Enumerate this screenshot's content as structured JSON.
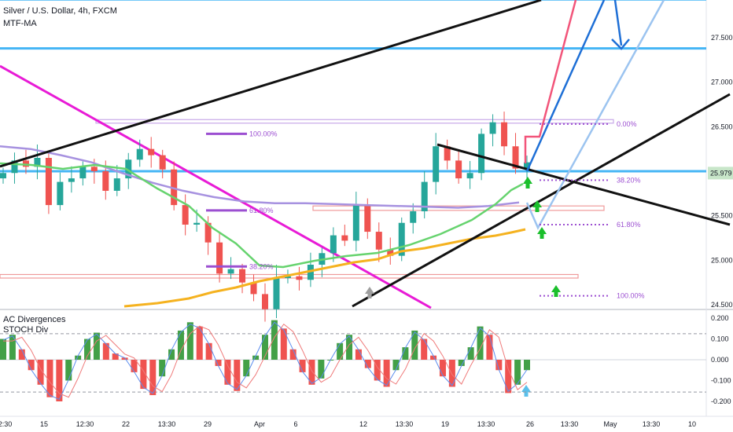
{
  "header": {
    "symbol_line": "Silver / U.S. Dollar, 4h, FXCM",
    "indicator_label": "MTF-MA",
    "osc_label_1": "AC Divergences",
    "osc_label_2": "STOCH Div"
  },
  "price_badge": {
    "value": "25.979",
    "color": "#c8e6c9"
  },
  "colors": {
    "bull": "#26a69a",
    "bear": "#ef5350",
    "ma_green": "#66d36e",
    "ma_purple": "#a792e0",
    "ma_orange": "#f5b21f",
    "line_blue": "#1e6fd6",
    "line_lightblue": "#9cc4f0",
    "line_cyan": "#45b5f5",
    "line_magenta": "#e81bd6",
    "line_red": "#f2557a",
    "fib": "#9c4fd1",
    "arrow_green": "#1bbf2c"
  },
  "chart_data": [
    {
      "type": "candlestick",
      "title": "Silver / U.S. Dollar, 4h, FXCM",
      "ylim": [
        24.4,
        27.95
      ],
      "y_ticks": [
        "27.500",
        "27.000",
        "26.500",
        "26.000",
        "25.500",
        "25.000",
        "24.500"
      ],
      "x_ticks": [
        "12:30",
        "15",
        "12:30",
        "22",
        "13:30",
        "29",
        "Apr",
        "6",
        "12",
        "13:30",
        "19",
        "13:30",
        "26",
        "13:30",
        "May",
        "13:30",
        "10"
      ],
      "last_price": 25.979,
      "closes": [
        25.98,
        26.12,
        26.05,
        26.15,
        25.62,
        25.88,
        25.92,
        26.05,
        26.0,
        25.78,
        25.92,
        26.13,
        26.25,
        26.18,
        26.02,
        25.62,
        25.4,
        25.42,
        25.2,
        24.85,
        24.9,
        24.75,
        24.62,
        24.45,
        24.8,
        24.82,
        24.78,
        24.95,
        25.08,
        25.28,
        25.22,
        25.62,
        25.32,
        25.12,
        25.05,
        25.42,
        25.55,
        25.88,
        26.28,
        26.12,
        25.92,
        25.98,
        26.42,
        26.55,
        26.28,
        26.03,
        26.1
      ],
      "fib_left": [
        {
          "label": "100.00%",
          "value": 26.42
        },
        {
          "label": "61.80%",
          "value": 25.56
        },
        {
          "label": "38.20%",
          "value": 24.93
        }
      ],
      "fib_right": [
        {
          "label": "0.00%",
          "value": 26.53
        },
        {
          "label": "38.20%",
          "value": 25.9
        },
        {
          "label": "61.80%",
          "value": 25.4
        },
        {
          "label": "100.00%",
          "value": 24.6
        }
      ],
      "horizontal_levels": [
        27.93,
        27.38,
        26.0
      ],
      "zones": [
        [
          26.54,
          26.58
        ],
        [
          25.56,
          25.61
        ],
        [
          24.8,
          24.84
        ]
      ],
      "series": [
        {
          "name": "MTF-MA",
          "values": [
            26.28,
            26.25,
            26.18,
            26.1,
            25.98,
            25.87,
            25.78,
            25.71,
            25.66,
            25.64,
            25.64,
            25.63,
            25.62,
            25.61,
            25.6,
            25.59,
            25.61,
            25.65
          ]
        }
      ]
    },
    {
      "type": "bar",
      "title": "AC Divergences",
      "ylim": [
        -0.25,
        0.22
      ],
      "y_ticks": [
        "0.200",
        "0.100",
        "0.000",
        "-0.100",
        "-0.200"
      ],
      "values": [
        0.1,
        0.12,
        0.05,
        -0.05,
        -0.12,
        -0.18,
        -0.2,
        -0.1,
        0.02,
        0.1,
        0.13,
        0.08,
        0.03,
        0.01,
        -0.06,
        -0.14,
        -0.17,
        -0.08,
        0.05,
        0.14,
        0.18,
        0.16,
        0.08,
        -0.03,
        -0.12,
        -0.15,
        -0.08,
        0.02,
        0.12,
        0.19,
        0.15,
        0.05,
        -0.06,
        -0.12,
        -0.09,
        0.0,
        0.08,
        0.12,
        0.05,
        -0.04,
        -0.1,
        -0.13,
        -0.05,
        0.06,
        0.14,
        0.1,
        0.02,
        -0.08,
        -0.13,
        -0.03,
        0.06,
        0.16,
        0.12,
        -0.05,
        -0.16,
        -0.12,
        -0.05
      ]
    }
  ]
}
